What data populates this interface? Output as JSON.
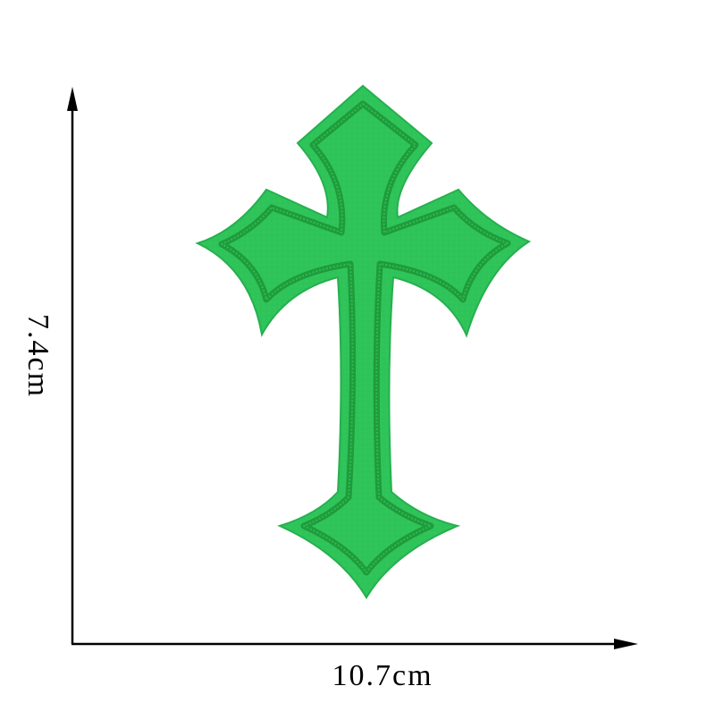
{
  "product": {
    "patch_color": "#2fc45a",
    "stitch_color": "#1f9b3c",
    "icon": "gothic-cross-patch"
  },
  "dimensions": {
    "height_label": "7.4cm",
    "width_label": "10.7cm"
  },
  "background": "#ffffff"
}
